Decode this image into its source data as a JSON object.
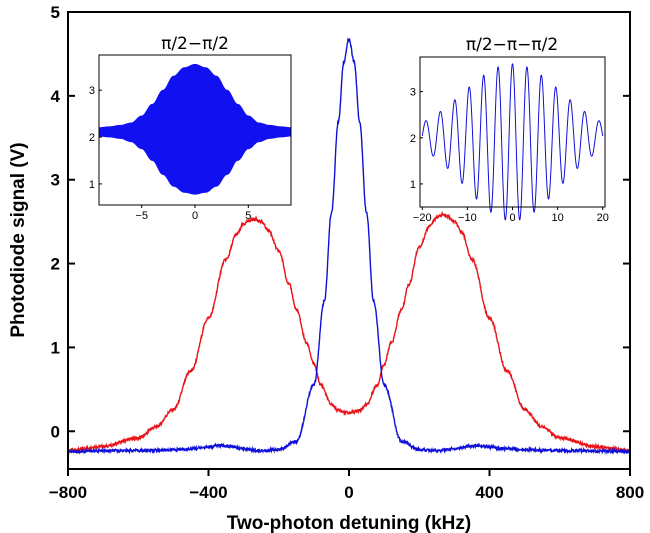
{
  "chart_data": [
    {
      "type": "line",
      "xlabel": "Two-photon detuning (kHz)",
      "ylabel": "Photodiode signal (V)",
      "xlim": [
        -800,
        800
      ],
      "ylim": [
        -0.45,
        5.0
      ],
      "xticks": [
        -800,
        -400,
        0,
        400,
        800
      ],
      "xtick_labels": [
        "−800",
        "−400",
        "0",
        "400",
        "800"
      ],
      "yticks": [
        0,
        1,
        2,
        3,
        4,
        5
      ],
      "ytick_labels": [
        "0",
        "1",
        "2",
        "3",
        "4",
        "5"
      ],
      "grid": false,
      "series": [
        {
          "color": "#e8151b",
          "x": [
            -800,
            -700,
            -600,
            -550,
            -500,
            -450,
            -400,
            -350,
            -320,
            -300,
            -280,
            -265,
            -250,
            -230,
            -200,
            -170,
            -150,
            -120,
            -100,
            -80,
            -50,
            -30,
            0,
            30,
            50,
            80,
            100,
            120,
            150,
            170,
            200,
            230,
            250,
            265,
            280,
            300,
            320,
            350,
            400,
            450,
            500,
            550,
            600,
            700,
            800
          ],
          "y": [
            -0.23,
            -0.18,
            -0.08,
            0.05,
            0.26,
            0.72,
            1.35,
            2.05,
            2.35,
            2.47,
            2.52,
            2.53,
            2.5,
            2.4,
            2.15,
            1.75,
            1.45,
            1.05,
            0.8,
            0.55,
            0.32,
            0.25,
            0.22,
            0.25,
            0.32,
            0.55,
            0.8,
            1.05,
            1.45,
            1.75,
            2.2,
            2.45,
            2.55,
            2.58,
            2.56,
            2.5,
            2.38,
            2.05,
            1.35,
            0.72,
            0.26,
            0.05,
            -0.08,
            -0.18,
            -0.23
          ]
        },
        {
          "color": "#1010d8",
          "x": [
            -800,
            -600,
            -500,
            -450,
            -400,
            -370,
            -340,
            -300,
            -250,
            -200,
            -150,
            -100,
            -70,
            -50,
            -30,
            -15,
            0,
            15,
            30,
            50,
            70,
            100,
            150,
            200,
            250,
            300,
            340,
            370,
            400,
            450,
            500,
            600,
            800
          ],
          "y": [
            -0.24,
            -0.23,
            -0.22,
            -0.21,
            -0.19,
            -0.17,
            -0.18,
            -0.21,
            -0.23,
            -0.22,
            -0.12,
            0.55,
            1.55,
            2.6,
            3.7,
            4.4,
            4.68,
            4.4,
            3.7,
            2.6,
            1.55,
            0.55,
            -0.12,
            -0.22,
            -0.23,
            -0.21,
            -0.18,
            -0.17,
            -0.19,
            -0.21,
            -0.22,
            -0.23,
            -0.24
          ]
        }
      ]
    },
    {
      "type": "line",
      "title": "π/2−π/2",
      "xlim": [
        -9,
        9
      ],
      "ylim": [
        0.55,
        3.75
      ],
      "xticks": [
        -5,
        0,
        5
      ],
      "xtick_labels": [
        "−5",
        "0",
        "5"
      ],
      "yticks": [
        1,
        2,
        3
      ],
      "ytick_labels": [
        "1",
        "2",
        "3"
      ],
      "series": [
        {
          "color": "#1010f0",
          "style": "filled-oscillation envelope",
          "x": [
            -9,
            -8,
            -7,
            -6,
            -5,
            -4,
            -3,
            -2,
            -1,
            0,
            1,
            2,
            3,
            4,
            5,
            6,
            7,
            8,
            9
          ],
          "upper": [
            2.2,
            2.22,
            2.25,
            2.3,
            2.45,
            2.7,
            3.0,
            3.3,
            3.48,
            3.55,
            3.48,
            3.3,
            3.0,
            2.7,
            2.45,
            2.3,
            2.25,
            2.22,
            2.2
          ],
          "lower": [
            2.02,
            2.0,
            1.97,
            1.9,
            1.75,
            1.5,
            1.2,
            0.95,
            0.82,
            0.78,
            0.82,
            0.95,
            1.2,
            1.5,
            1.75,
            1.9,
            1.97,
            2.0,
            2.02
          ]
        }
      ]
    },
    {
      "type": "line",
      "title": "π/2−π−π/2",
      "xlim": [
        -20.5,
        20.5
      ],
      "ylim": [
        0.5,
        3.75
      ],
      "xticks": [
        -20,
        -10,
        0,
        10,
        20
      ],
      "xtick_labels": [
        "−20",
        "−10",
        "0",
        "10",
        "20"
      ],
      "yticks": [
        1,
        2,
        3
      ],
      "ytick_labels": [
        "1",
        "2",
        "3"
      ],
      "series": [
        {
          "color": "#1010d8",
          "style": "damped interference fringes centered at 0, period ~3.2 kHz",
          "center": 2.05,
          "period": 3.2,
          "amplitude_at_zero": 1.7,
          "envelope_width": 15
        }
      ]
    }
  ]
}
